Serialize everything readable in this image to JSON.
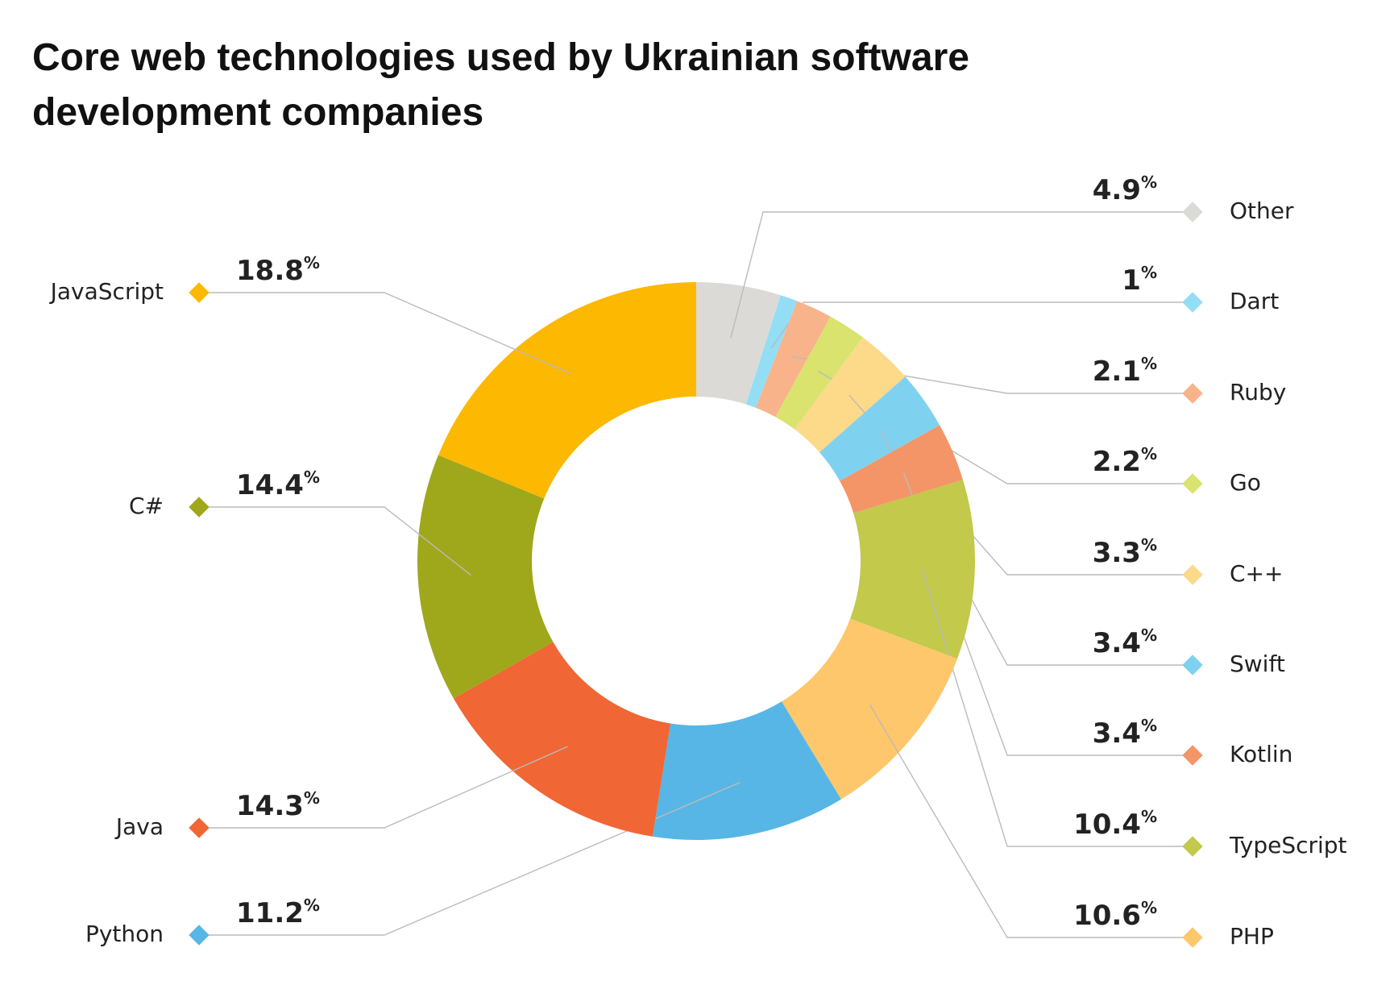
{
  "chart_data": {
    "type": "donut",
    "title": "Core web technologies used by Ukrainian software development companies",
    "categories": [
      "Other",
      "Dart",
      "Ruby",
      "Go",
      "C++",
      "Swift",
      "Kotlin",
      "TypeScript",
      "PHP",
      "Python",
      "Java",
      "C#",
      "JavaScript"
    ],
    "values": [
      4.9,
      1,
      2.1,
      2.2,
      3.3,
      3.4,
      3.4,
      10.4,
      10.6,
      11.2,
      14.3,
      14.4,
      18.8
    ],
    "value_labels": [
      "4.9%",
      "1%",
      "2.1%",
      "2.2%",
      "3.3%",
      "3.4%",
      "3.4%",
      "10.4%",
      "10.6%",
      "11.2%",
      "14.3%",
      "14.4%",
      "18.8%"
    ],
    "colors": [
      "#dcdad6",
      "#93def5",
      "#f8b38b",
      "#d9e36d",
      "#fdd98a",
      "#7fd1f0",
      "#f49568",
      "#c2c94b",
      "#fec76b",
      "#57b6e5",
      "#f06634",
      "#9fa71b",
      "#fdb801"
    ]
  }
}
